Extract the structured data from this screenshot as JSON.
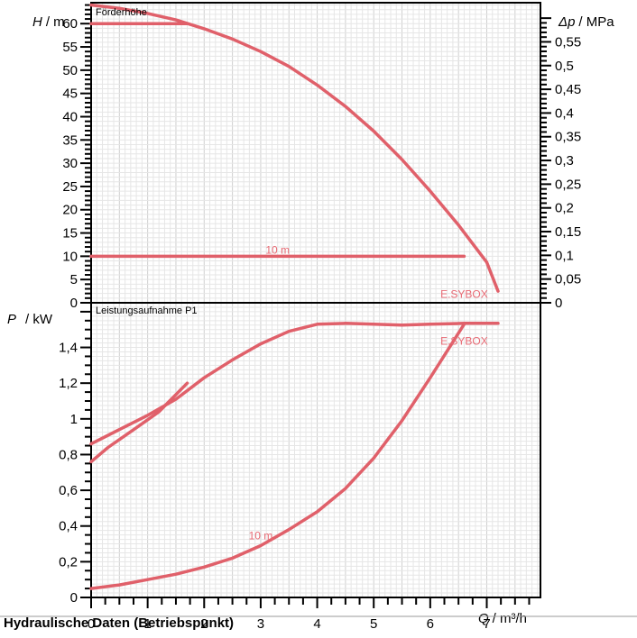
{
  "colors": {
    "curve": "#e0606a",
    "curve_label": "#e86a74",
    "grid_minor": "#e6e6e6",
    "grid_major": "#cfcfcf",
    "axis": "#000000"
  },
  "footer": {
    "title": "Hydraulische Daten (Betriebspunkt)"
  },
  "chart_data": [
    {
      "type": "line",
      "title": "Förderhöhe",
      "ylabel_var": "H",
      "ylabel_unit": "/ m",
      "y2label_var": "Δp",
      "y2label_unit": "/ MPa",
      "ylim": [
        0,
        64.5
      ],
      "xlim": [
        0,
        7.95
      ],
      "y_ticks": [
        "0",
        "5",
        "10",
        "15",
        "20",
        "25",
        "30",
        "35",
        "40",
        "45",
        "50",
        "55",
        "60"
      ],
      "y2_ticks": [
        "0",
        "0,05",
        "0,1",
        "0,15",
        "0,2",
        "0,25",
        "0,3",
        "0,35",
        "0,4",
        "0,45",
        "0,5",
        "0,55"
      ],
      "series": [
        {
          "name": "E.SYBOX",
          "x": [
            0,
            0.5,
            1.0,
            1.5,
            2.0,
            2.5,
            3.0,
            3.5,
            4.0,
            4.5,
            5.0,
            5.5,
            6.0,
            6.5,
            7.0,
            7.2
          ],
          "y": [
            64,
            63.3,
            62.2,
            60.8,
            58.9,
            56.7,
            54.0,
            50.8,
            46.8,
            42.2,
            36.9,
            30.8,
            24.0,
            16.7,
            8.7,
            2.5
          ]
        },
        {
          "name": "",
          "x": [
            0,
            1.7
          ],
          "y": [
            60,
            60
          ]
        },
        {
          "name": "10 m",
          "x": [
            0,
            6.6
          ],
          "y": [
            10,
            10
          ]
        }
      ],
      "annotations": [
        {
          "text": "10 m",
          "x": 3.3,
          "y": 10
        },
        {
          "text": "E.SYBOX",
          "x": 6.6,
          "y": 0.5
        }
      ]
    },
    {
      "type": "line",
      "title": "Leistungsaufnahme P1",
      "ylabel_var": "P",
      "ylabel_unit": "/ kW",
      "xlabel_var": "Q",
      "xlabel_unit": "/ m³/h",
      "ylim": [
        0,
        1.65
      ],
      "xlim": [
        0,
        7.95
      ],
      "y_ticks": [
        "0",
        "0,2",
        "0,4",
        "0,6",
        "0,8",
        "1",
        "1,2",
        "1,4"
      ],
      "x_ticks": [
        "0",
        "1",
        "2",
        "3",
        "4",
        "5",
        "6",
        "7"
      ],
      "series": [
        {
          "name": "E.SYBOX",
          "x": [
            0,
            0.5,
            1.0,
            1.5,
            2.0,
            2.5,
            3.0,
            3.5,
            4.0,
            4.5,
            5.0,
            5.5,
            6.0,
            6.6,
            7.2
          ],
          "y": [
            0.86,
            0.94,
            1.02,
            1.11,
            1.23,
            1.33,
            1.42,
            1.49,
            1.53,
            1.535,
            1.53,
            1.525,
            1.53,
            1.535,
            1.535
          ]
        },
        {
          "name": "",
          "x": [
            0,
            0.3,
            0.8,
            1.2,
            1.7
          ],
          "y": [
            0.76,
            0.84,
            0.95,
            1.04,
            1.2
          ]
        },
        {
          "name": "10 m",
          "x": [
            0,
            0.5,
            1.0,
            1.5,
            2.0,
            2.5,
            3.0,
            3.5,
            4.0,
            4.5,
            5.0,
            5.5,
            6.0,
            6.6
          ],
          "y": [
            0.05,
            0.07,
            0.1,
            0.13,
            0.17,
            0.22,
            0.29,
            0.38,
            0.48,
            0.61,
            0.78,
            0.99,
            1.23,
            1.53
          ]
        }
      ],
      "annotations": [
        {
          "text": "E.SYBOX",
          "x": 6.6,
          "y": 1.4
        },
        {
          "text": "10 m",
          "x": 3.0,
          "y": 0.31
        }
      ]
    }
  ]
}
